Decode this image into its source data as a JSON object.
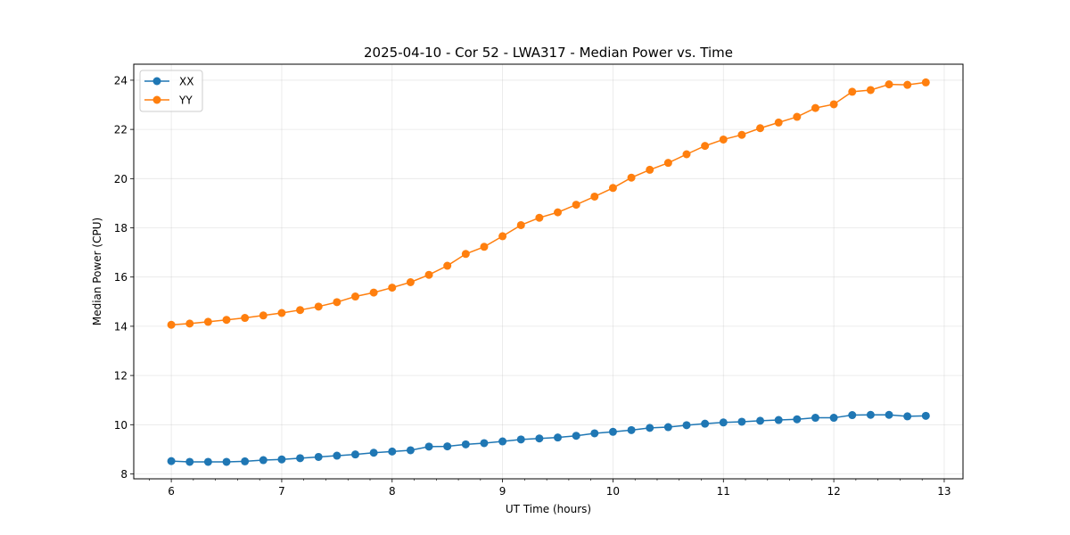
{
  "chart_data": {
    "type": "line",
    "title": "2025-04-10 - Cor 52 - LWA317 - Median Power vs. Time",
    "xlabel": "UT Time (hours)",
    "ylabel": "Median Power (CPU)",
    "xlim": [
      5.66,
      13.17
    ],
    "ylim": [
      7.8,
      24.65
    ],
    "xticks": [
      6,
      7,
      8,
      9,
      10,
      11,
      12,
      13
    ],
    "yticks": [
      8,
      10,
      12,
      14,
      16,
      18,
      20,
      22,
      24
    ],
    "grid": true,
    "legend_position": "top-left",
    "x": [
      6.0,
      6.1667,
      6.3333,
      6.5,
      6.6667,
      6.8333,
      7.0,
      7.1667,
      7.3333,
      7.5,
      7.6667,
      7.8333,
      8.0,
      8.1667,
      8.3333,
      8.5,
      8.6667,
      8.8333,
      9.0,
      9.1667,
      9.3333,
      9.5,
      9.6667,
      9.8333,
      10.0,
      10.1667,
      10.3333,
      10.5,
      10.6667,
      10.8333,
      11.0,
      11.1667,
      11.3333,
      11.5,
      11.6667,
      11.8333,
      12.0,
      12.1667,
      12.3333,
      12.5,
      12.6667,
      12.8333
    ],
    "series": [
      {
        "name": "XX",
        "color": "#1f77b4",
        "values": [
          8.52,
          8.49,
          8.49,
          8.49,
          8.51,
          8.56,
          8.59,
          8.64,
          8.69,
          8.74,
          8.79,
          8.86,
          8.91,
          8.96,
          9.11,
          9.12,
          9.2,
          9.25,
          9.32,
          9.4,
          9.44,
          9.48,
          9.55,
          9.65,
          9.71,
          9.78,
          9.87,
          9.9,
          9.98,
          10.04,
          10.09,
          10.12,
          10.16,
          10.19,
          10.22,
          10.28,
          10.28,
          10.39,
          10.4,
          10.4,
          10.34,
          10.36
        ]
      },
      {
        "name": "YY",
        "color": "#ff7f0e",
        "values": [
          14.06,
          14.11,
          14.18,
          14.26,
          14.34,
          14.44,
          14.54,
          14.66,
          14.8,
          14.98,
          15.21,
          15.37,
          15.57,
          15.79,
          16.09,
          16.46,
          16.94,
          17.23,
          17.66,
          18.11,
          18.41,
          18.63,
          18.94,
          19.27,
          19.62,
          20.04,
          20.36,
          20.64,
          20.99,
          21.33,
          21.59,
          21.78,
          22.05,
          22.28,
          22.51,
          22.87,
          23.02,
          23.53,
          23.6,
          23.83,
          23.81,
          23.91
        ]
      }
    ]
  }
}
